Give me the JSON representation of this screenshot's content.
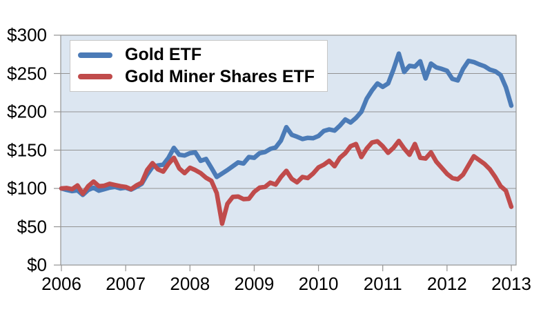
{
  "chart_data": {
    "type": "line",
    "title": "",
    "x_tick_labels": [
      "2006",
      "2007",
      "2008",
      "2009",
      "2010",
      "2011",
      "2012",
      "2013"
    ],
    "y_tick_labels": [
      "$0",
      "$50",
      "$100",
      "$150",
      "$200",
      "$250",
      "$300"
    ],
    "y_ticks": [
      0,
      50,
      100,
      150,
      200,
      250,
      300
    ],
    "ylim": [
      0,
      300
    ],
    "x_start_year": 2006,
    "x_end_year": 2013,
    "points_per_year": 12,
    "grid": "horizontal",
    "legend_position": "top-left-inside",
    "plot_bg_color": "#dce6f1",
    "grid_color": "#929292",
    "axis_text_color": "#000000",
    "series": [
      {
        "name": "Gold ETF",
        "color": "#4b7bb7",
        "values": [
          100,
          98,
          96.5,
          97.5,
          91.5,
          98,
          101,
          97,
          99,
          101,
          102,
          100,
          101,
          98.5,
          102,
          106,
          118,
          128,
          130,
          131,
          140,
          153,
          144,
          143,
          146,
          147,
          136,
          138.5,
          127,
          115,
          119.5,
          124,
          129,
          134,
          132.5,
          141,
          140,
          146,
          147.5,
          151.5,
          153.5,
          162.5,
          180,
          170,
          167.5,
          164.5,
          166,
          165.5,
          168.5,
          175,
          177,
          175.5,
          182,
          190,
          186,
          192,
          200,
          217,
          228,
          237,
          232.5,
          237,
          255,
          276,
          252,
          260,
          259,
          266,
          243.5,
          263,
          258,
          256,
          253.5,
          243,
          241,
          256,
          266.5,
          265,
          262,
          259.5,
          255,
          253,
          248,
          232,
          208
        ]
      },
      {
        "name": "Gold Miner Shares ETF",
        "color": "#c04b4b",
        "values": [
          100,
          100.5,
          99,
          104,
          93,
          103,
          109,
          103,
          103.5,
          106,
          104.5,
          103,
          102,
          99,
          104,
          107.5,
          124,
          133,
          125,
          122,
          132,
          140,
          126,
          120,
          127,
          124,
          120,
          114,
          110,
          94,
          54,
          80,
          89,
          89.5,
          86,
          86.5,
          95.5,
          101,
          102,
          107.5,
          105,
          115,
          123,
          112.5,
          108,
          115,
          113.5,
          119.5,
          127.5,
          131,
          136,
          129,
          140,
          146,
          155,
          158,
          141,
          152,
          160,
          161.5,
          155,
          146.5,
          153,
          162,
          152,
          144,
          158,
          140,
          139,
          147,
          135,
          127,
          119,
          113.5,
          112,
          118,
          130,
          142,
          137,
          132,
          125,
          115,
          103,
          97,
          76
        ]
      }
    ]
  }
}
